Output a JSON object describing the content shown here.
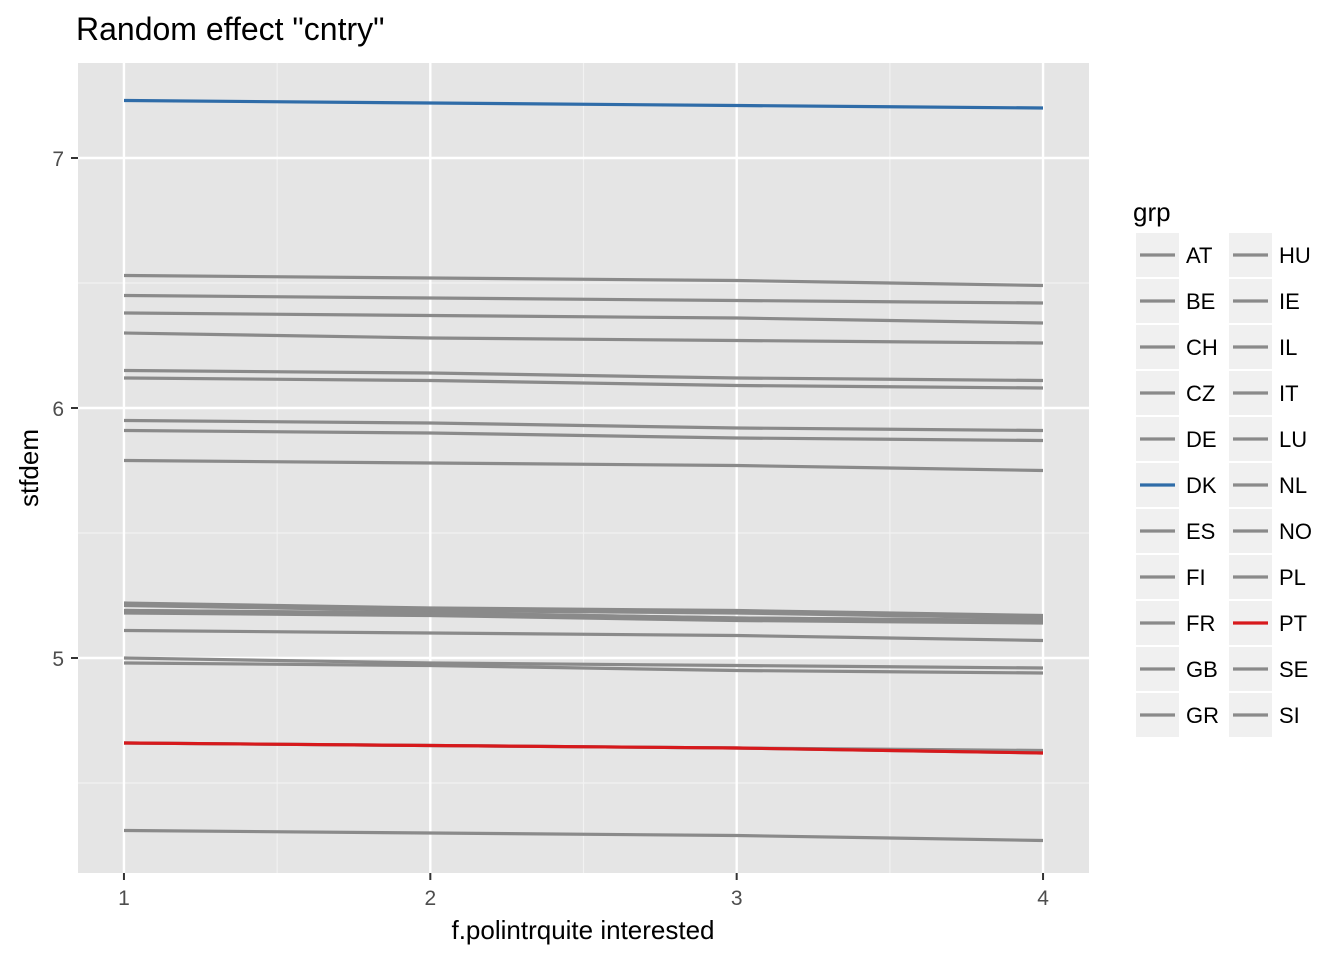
{
  "chart_data": {
    "type": "line",
    "title": "Random effect \"cntry\"",
    "xlabel": "f.polintrquite interested",
    "ylabel": "stfdem",
    "x": [
      1,
      2,
      3,
      4
    ],
    "xticks": [
      "1",
      "2",
      "3",
      "4"
    ],
    "yticks": [
      "5",
      "6",
      "7"
    ],
    "xlim": [
      0.85,
      4.15
    ],
    "ylim": [
      4.14,
      7.38
    ],
    "grid": true,
    "legend": {
      "title": "grp",
      "position": "right",
      "columns": 2
    },
    "highlight_colors": {
      "DK": "#2f6ca8",
      "PT": "#d7191c"
    },
    "default_color": "#8a8a8a",
    "series": [
      {
        "name": "AT",
        "values": [
          6.53,
          6.52,
          6.51,
          6.49
        ]
      },
      {
        "name": "BE",
        "values": [
          6.45,
          6.44,
          6.43,
          6.42
        ]
      },
      {
        "name": "CH",
        "values": [
          6.38,
          6.37,
          6.36,
          6.34
        ]
      },
      {
        "name": "CZ",
        "values": [
          6.3,
          6.28,
          6.27,
          6.26
        ]
      },
      {
        "name": "DE",
        "values": [
          6.15,
          6.14,
          6.12,
          6.11
        ]
      },
      {
        "name": "DK",
        "values": [
          7.23,
          7.22,
          7.21,
          7.2
        ]
      },
      {
        "name": "ES",
        "values": [
          6.12,
          6.11,
          6.09,
          6.08
        ]
      },
      {
        "name": "FI",
        "values": [
          5.95,
          5.94,
          5.92,
          5.91
        ]
      },
      {
        "name": "FR",
        "values": [
          5.91,
          5.9,
          5.88,
          5.87
        ]
      },
      {
        "name": "GB",
        "values": [
          5.79,
          5.78,
          5.77,
          5.75
        ]
      },
      {
        "name": "GR",
        "values": [
          5.22,
          5.2,
          5.19,
          5.17
        ]
      },
      {
        "name": "HU",
        "values": [
          5.21,
          5.19,
          5.18,
          5.16
        ]
      },
      {
        "name": "IE",
        "values": [
          5.19,
          5.18,
          5.16,
          5.15
        ]
      },
      {
        "name": "IL",
        "values": [
          5.11,
          5.1,
          5.09,
          5.07
        ]
      },
      {
        "name": "IT",
        "values": [
          5.0,
          4.98,
          4.97,
          4.96
        ]
      },
      {
        "name": "LU",
        "values": [
          4.98,
          4.97,
          4.95,
          4.94
        ]
      },
      {
        "name": "NL",
        "values": [
          4.66,
          4.65,
          4.64,
          4.63
        ]
      },
      {
        "name": "NO",
        "values": [
          4.66,
          4.65,
          4.64,
          4.62
        ]
      },
      {
        "name": "PL",
        "values": [
          4.31,
          4.3,
          4.29,
          4.27
        ]
      },
      {
        "name": "PT",
        "values": [
          4.66,
          4.65,
          4.64,
          4.62
        ]
      },
      {
        "name": "SE",
        "values": [
          5.19,
          5.18,
          5.16,
          5.15
        ]
      },
      {
        "name": "SI",
        "values": [
          5.18,
          5.17,
          5.15,
          5.14
        ]
      }
    ]
  }
}
